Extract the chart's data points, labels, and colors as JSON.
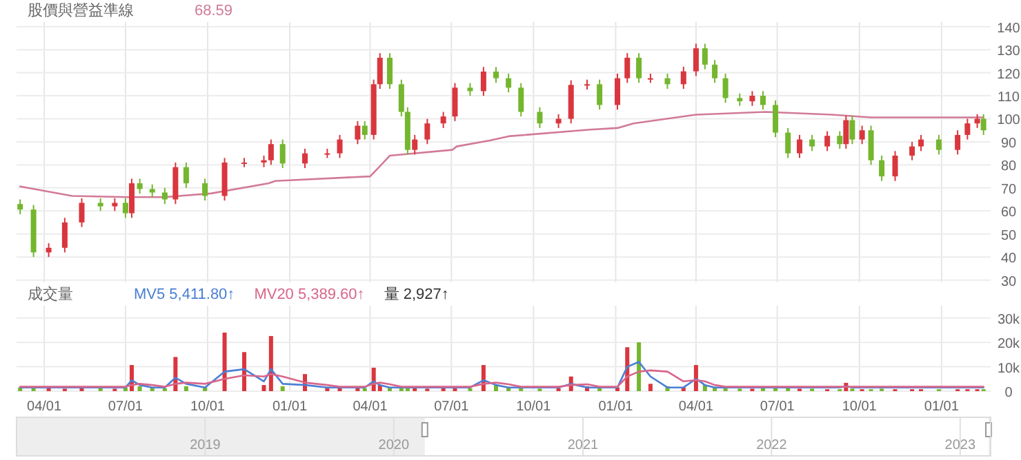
{
  "chart_data": [
    {
      "type": "candlestick",
      "title": "股價與營益準線",
      "annotations": [
        "68.59"
      ],
      "x": [
        "2020-03-05",
        "2020-03-20",
        "2020-04-06",
        "2020-04-24",
        "2020-05-13",
        "2020-06-03",
        "2020-06-19",
        "2020-07-01",
        "2020-07-08",
        "2020-07-17",
        "2020-07-31",
        "2020-08-14",
        "2020-08-26",
        "2020-09-07",
        "2020-09-28",
        "2020-10-20",
        "2020-11-11",
        "2020-12-03",
        "2020-12-11",
        "2020-12-24",
        "2021-01-18",
        "2021-02-12",
        "2021-02-26",
        "2021-03-18",
        "2021-03-26",
        "2021-04-05",
        "2021-04-12",
        "2021-04-23",
        "2021-05-06",
        "2021-05-13",
        "2021-05-21",
        "2021-06-04",
        "2021-06-22",
        "2021-07-05",
        "2021-07-22",
        "2021-08-06",
        "2021-08-20",
        "2021-09-03",
        "2021-09-17",
        "2021-10-08",
        "2021-10-29",
        "2021-11-12",
        "2021-11-30",
        "2021-12-14",
        "2022-01-03",
        "2022-01-14",
        "2022-01-27",
        "2022-02-09",
        "2022-02-28",
        "2022-03-18",
        "2022-04-01",
        "2022-04-11",
        "2022-04-22",
        "2022-05-04",
        "2022-05-20",
        "2022-06-03",
        "2022-06-15",
        "2022-06-29",
        "2022-07-13",
        "2022-07-26",
        "2022-08-09",
        "2022-08-26",
        "2022-09-09",
        "2022-09-16",
        "2022-09-23",
        "2022-10-04",
        "2022-10-14",
        "2022-10-26",
        "2022-11-10",
        "2022-11-29",
        "2022-12-09",
        "2022-12-29",
        "2023-01-19",
        "2023-01-30",
        "2023-02-10",
        "2023-02-17"
      ],
      "ohlc": [
        [
          63,
          65,
          58.6,
          60.6
        ],
        [
          60.6,
          62.6,
          40,
          42
        ],
        [
          42,
          46,
          40,
          44
        ],
        [
          44,
          57,
          42,
          55
        ],
        [
          55,
          65.5,
          53,
          63.5
        ],
        [
          63.5,
          65.5,
          60,
          62
        ],
        [
          62,
          65.5,
          60,
          63.5
        ],
        [
          63.5,
          65.5,
          57,
          59
        ],
        [
          59,
          74,
          57,
          72
        ],
        [
          72,
          74,
          67.5,
          69.5
        ],
        [
          69.5,
          71.5,
          66,
          68
        ],
        [
          68,
          70,
          63,
          65
        ],
        [
          65,
          81,
          63,
          79
        ],
        [
          79,
          81,
          70,
          72
        ],
        [
          72,
          74,
          64.5,
          66.5
        ],
        [
          66.5,
          83,
          64.5,
          81
        ],
        [
          81,
          83,
          79,
          81
        ],
        [
          81,
          84,
          79,
          82
        ],
        [
          82,
          91,
          80,
          89
        ],
        [
          89,
          91,
          78.6,
          80.6
        ],
        [
          80.6,
          87,
          78.6,
          85
        ],
        [
          85,
          87,
          83,
          85
        ],
        [
          85,
          93,
          83,
          91
        ],
        [
          91,
          99,
          89,
          97
        ],
        [
          97,
          99,
          91,
          93
        ],
        [
          93,
          117,
          91,
          115
        ],
        [
          115,
          128.5,
          113,
          126.5
        ],
        [
          126.5,
          128.5,
          113,
          115
        ],
        [
          115,
          117,
          101,
          103
        ],
        [
          103,
          105,
          84.5,
          86.5
        ],
        [
          86.5,
          93,
          84.5,
          91
        ],
        [
          91,
          100,
          89,
          98
        ],
        [
          98,
          103,
          96,
          101
        ],
        [
          101,
          115.5,
          99,
          113.5
        ],
        [
          113.5,
          115.5,
          110,
          112
        ],
        [
          112,
          122.5,
          110,
          120.5
        ],
        [
          120.5,
          122.5,
          115.6,
          117.6
        ],
        [
          117.6,
          119.6,
          111.5,
          113.5
        ],
        [
          113.5,
          115.5,
          101,
          103
        ],
        [
          103,
          105,
          96,
          98
        ],
        [
          98,
          102,
          96,
          100
        ],
        [
          100,
          116.7,
          98,
          114.7
        ],
        [
          114.7,
          117,
          112.7,
          115
        ],
        [
          115,
          117,
          104,
          106
        ],
        [
          106,
          119.6,
          104,
          117.6
        ],
        [
          117.6,
          128.5,
          115.6,
          126.5
        ],
        [
          126.5,
          128.5,
          115.6,
          117.6
        ],
        [
          117.6,
          119.6,
          115.6,
          117.6
        ],
        [
          117.6,
          119.6,
          113,
          115
        ],
        [
          115,
          122.6,
          113,
          120.6
        ],
        [
          120.6,
          132.6,
          118.6,
          130.6
        ],
        [
          130.6,
          132.6,
          121.5,
          123.5
        ],
        [
          123.5,
          125.5,
          115.6,
          117.6
        ],
        [
          117.6,
          119.6,
          107,
          109
        ],
        [
          109,
          111,
          105.6,
          107.6
        ],
        [
          107.6,
          112,
          105.6,
          110
        ],
        [
          110,
          112,
          104,
          106
        ],
        [
          106,
          108,
          92,
          94
        ],
        [
          94,
          96,
          83,
          85
        ],
        [
          85,
          93,
          83,
          91
        ],
        [
          91,
          93,
          86,
          88
        ],
        [
          88,
          94.6,
          86,
          92.6
        ],
        [
          92.6,
          94.6,
          87,
          89
        ],
        [
          89,
          101.4,
          87,
          99.4
        ],
        [
          99.4,
          101.4,
          89,
          91
        ],
        [
          91,
          97,
          89,
          95
        ],
        [
          95,
          97,
          80,
          82
        ],
        [
          82,
          84,
          73,
          75
        ],
        [
          75,
          86,
          73,
          84
        ],
        [
          84,
          90,
          82,
          88
        ],
        [
          88,
          93,
          86,
          91
        ],
        [
          91,
          93,
          84.5,
          86.5
        ],
        [
          86.5,
          95,
          84.5,
          93
        ],
        [
          93,
          100,
          91,
          98
        ],
        [
          98,
          102,
          96,
          100
        ],
        [
          100,
          102,
          93,
          95
        ]
      ],
      "colors": [
        "#74b62e",
        "#74b62e",
        "#d9363e",
        "#d9363e",
        "#d9363e",
        "#74b62e",
        "#d9363e",
        "#74b62e",
        "#d9363e",
        "#74b62e",
        "#74b62e",
        "#74b62e",
        "#d9363e",
        "#74b62e",
        "#74b62e",
        "#d9363e",
        "#d9363e",
        "#d9363e",
        "#d9363e",
        "#74b62e",
        "#d9363e",
        "#d9363e",
        "#d9363e",
        "#d9363e",
        "#74b62e",
        "#d9363e",
        "#d9363e",
        "#74b62e",
        "#74b62e",
        "#74b62e",
        "#d9363e",
        "#d9363e",
        "#d9363e",
        "#d9363e",
        "#74b62e",
        "#d9363e",
        "#74b62e",
        "#74b62e",
        "#74b62e",
        "#74b62e",
        "#d9363e",
        "#d9363e",
        "#d9363e",
        "#74b62e",
        "#d9363e",
        "#d9363e",
        "#74b62e",
        "#d9363e",
        "#74b62e",
        "#d9363e",
        "#d9363e",
        "#74b62e",
        "#74b62e",
        "#74b62e",
        "#74b62e",
        "#d9363e",
        "#74b62e",
        "#74b62e",
        "#74b62e",
        "#d9363e",
        "#74b62e",
        "#d9363e",
        "#74b62e",
        "#d9363e",
        "#74b62e",
        "#d9363e",
        "#74b62e",
        "#74b62e",
        "#d9363e",
        "#d9363e",
        "#d9363e",
        "#74b62e",
        "#d9363e",
        "#d9363e",
        "#d9363e",
        "#74b62e"
      ],
      "series": [
        {
          "type": "line",
          "color": "#d27a96",
          "x": [
            "2020-03-05",
            "2020-05-02",
            "2020-07-03",
            "2020-08-14",
            "2020-10-05",
            "2020-12-08",
            "2020-12-16",
            "2021-04-01",
            "2021-04-12",
            "2021-04-23",
            "2021-07-02",
            "2021-07-07",
            "2021-08-13",
            "2021-09-03",
            "2021-12-03",
            "2022-01-03",
            "2022-01-21",
            "2022-04-01",
            "2022-06-18",
            "2022-08-31",
            "2022-10-14",
            "2023-02-17"
          ],
          "values": [
            70.6,
            66.5,
            66,
            66,
            67.6,
            72,
            73,
            75,
            79.4,
            84,
            86.5,
            88,
            90.6,
            92.4,
            95.3,
            96,
            98,
            101.8,
            103,
            101.8,
            100.6,
            100.6
          ]
        }
      ],
      "xlim": [
        "2020-03-01",
        "2023-02-25"
      ],
      "xticks": [
        {
          "value": "2020-04-01",
          "label": null
        },
        {
          "value": "2020-07-01",
          "label": null
        },
        {
          "value": "2020-10-01",
          "label": null
        },
        {
          "value": "2021-01-01",
          "label": null
        },
        {
          "value": "2021-04-01",
          "label": null
        },
        {
          "value": "2021-07-01",
          "label": null
        },
        {
          "value": "2021-10-01",
          "label": null
        },
        {
          "value": "2022-01-01",
          "label": null
        },
        {
          "value": "2022-04-01",
          "label": null
        },
        {
          "value": "2022-07-01",
          "label": null
        },
        {
          "value": "2022-10-01",
          "label": null
        },
        {
          "value": "2023-01-01",
          "label": null
        }
      ],
      "ylim": [
        29,
        142
      ],
      "yticks": [
        30,
        40,
        50,
        60,
        70,
        80,
        90,
        100,
        110,
        120,
        130,
        140
      ],
      "grid": true,
      "tick_labels": "y"
    },
    {
      "type": "bar",
      "title": "成交量",
      "legend": "top left",
      "annotations": [
        "量 2,927↑"
      ],
      "x": [
        "2020-03-05",
        "2020-03-20",
        "2020-04-06",
        "2020-04-24",
        "2020-05-13",
        "2020-06-03",
        "2020-06-19",
        "2020-07-01",
        "2020-07-08",
        "2020-07-17",
        "2020-07-31",
        "2020-08-14",
        "2020-08-26",
        "2020-09-07",
        "2020-09-28",
        "2020-10-20",
        "2020-11-11",
        "2020-12-03",
        "2020-12-11",
        "2020-12-24",
        "2021-01-18",
        "2021-02-12",
        "2021-02-26",
        "2021-03-18",
        "2021-03-26",
        "2021-04-05",
        "2021-04-12",
        "2021-04-23",
        "2021-05-06",
        "2021-05-13",
        "2021-05-21",
        "2021-06-04",
        "2021-06-22",
        "2021-07-05",
        "2021-07-22",
        "2021-08-06",
        "2021-08-20",
        "2021-09-03",
        "2021-09-17",
        "2021-10-08",
        "2021-10-29",
        "2021-11-12",
        "2021-11-30",
        "2021-12-14",
        "2022-01-03",
        "2022-01-14",
        "2022-01-27",
        "2022-02-09",
        "2022-02-28",
        "2022-03-18",
        "2022-04-01",
        "2022-04-11",
        "2022-04-22",
        "2022-05-04",
        "2022-05-20",
        "2022-06-03",
        "2022-06-15",
        "2022-06-29",
        "2022-07-13",
        "2022-07-26",
        "2022-08-09",
        "2022-08-26",
        "2022-09-09",
        "2022-09-16",
        "2022-09-23",
        "2022-10-04",
        "2022-10-14",
        "2022-10-26",
        "2022-11-10",
        "2022-11-29",
        "2022-12-09",
        "2022-12-29",
        "2023-01-19",
        "2023-01-30",
        "2023-02-10",
        "2023-02-17"
      ],
      "series": [
        {
          "name": "MV5 5,411.80↑",
          "type": "line",
          "color": "#4a7fd4",
          "values": [
            1500,
            1500,
            1500,
            1500,
            1500,
            1500,
            1500,
            1500,
            4500,
            2500,
            1500,
            1500,
            5500,
            3000,
            1500,
            8000,
            9000,
            4000,
            9000,
            3000,
            2500,
            1500,
            1500,
            1500,
            1500,
            4000,
            2500,
            1500,
            1500,
            1500,
            1500,
            1500,
            1500,
            1500,
            1500,
            4500,
            2500,
            1500,
            1500,
            1500,
            1500,
            3000,
            1500,
            1500,
            1500,
            10000,
            12000,
            6000,
            1500,
            1500,
            5000,
            2500,
            1500,
            1500,
            1500,
            1500,
            1500,
            1500,
            1500,
            1500,
            1500,
            1500,
            1500,
            2000,
            1500,
            1500,
            1500,
            1500,
            1500,
            1500,
            1500,
            1500,
            1500,
            1500,
            1500,
            1500
          ]
        },
        {
          "name": "MV20 5,389.60↑",
          "type": "line",
          "color": "#d8668a",
          "values": [
            1800,
            1800,
            1800,
            1800,
            1800,
            1800,
            1800,
            1800,
            2500,
            3000,
            2500,
            1800,
            3000,
            3500,
            3000,
            5000,
            6500,
            6000,
            7000,
            6000,
            3500,
            2500,
            1800,
            1800,
            1800,
            3000,
            3500,
            2800,
            1800,
            1800,
            1800,
            1800,
            1800,
            1800,
            1800,
            3000,
            3500,
            2800,
            1800,
            1800,
            1800,
            2500,
            2800,
            1800,
            1800,
            6000,
            8000,
            8500,
            8000,
            4000,
            4500,
            4000,
            2500,
            1800,
            1800,
            1800,
            1800,
            1800,
            1800,
            1800,
            1800,
            1800,
            1800,
            1800,
            1800,
            1800,
            1800,
            1800,
            1800,
            1800,
            1800,
            1800,
            1800,
            1800,
            1800,
            1800
          ]
        },
        {
          "type": "bar",
          "values": [
            1500,
            2000,
            1200,
            1000,
            1500,
            1200,
            1000,
            1500,
            10700,
            2000,
            1500,
            1200,
            14000,
            2000,
            1500,
            24000,
            16000,
            2500,
            22600,
            2000,
            7000,
            1500,
            1200,
            1500,
            1200,
            9600,
            2500,
            1500,
            1200,
            2000,
            1200,
            1000,
            1200,
            1500,
            1200,
            10700,
            2500,
            1500,
            1200,
            1000,
            1200,
            6000,
            2000,
            1500,
            1500,
            18000,
            20000,
            3000,
            2000,
            1500,
            10700,
            2500,
            1500,
            1200,
            1000,
            1000,
            1200,
            1500,
            1200,
            1000,
            1000,
            800,
            800,
            3400,
            1000,
            800,
            800,
            1000,
            800,
            800,
            800,
            800,
            800,
            800,
            800,
            800
          ],
          "colors": [
            "#74b62e",
            "#74b62e",
            "#d9363e",
            "#d9363e",
            "#d9363e",
            "#74b62e",
            "#d9363e",
            "#74b62e",
            "#d9363e",
            "#74b62e",
            "#74b62e",
            "#74b62e",
            "#d9363e",
            "#74b62e",
            "#74b62e",
            "#d9363e",
            "#d9363e",
            "#d9363e",
            "#d9363e",
            "#74b62e",
            "#d9363e",
            "#d9363e",
            "#d9363e",
            "#d9363e",
            "#74b62e",
            "#d9363e",
            "#d9363e",
            "#74b62e",
            "#74b62e",
            "#74b62e",
            "#d9363e",
            "#d9363e",
            "#d9363e",
            "#d9363e",
            "#74b62e",
            "#d9363e",
            "#74b62e",
            "#74b62e",
            "#74b62e",
            "#74b62e",
            "#d9363e",
            "#d9363e",
            "#d9363e",
            "#74b62e",
            "#d9363e",
            "#d9363e",
            "#74b62e",
            "#d9363e",
            "#74b62e",
            "#d9363e",
            "#d9363e",
            "#74b62e",
            "#74b62e",
            "#74b62e",
            "#74b62e",
            "#d9363e",
            "#74b62e",
            "#74b62e",
            "#74b62e",
            "#d9363e",
            "#74b62e",
            "#d9363e",
            "#74b62e",
            "#d9363e",
            "#74b62e",
            "#d9363e",
            "#74b62e",
            "#74b62e",
            "#d9363e",
            "#d9363e",
            "#d9363e",
            "#74b62e",
            "#d9363e",
            "#d9363e",
            "#d9363e",
            "#74b62e"
          ]
        }
      ],
      "xlim": [
        "2020-03-01",
        "2023-02-25"
      ],
      "xticks": [
        {
          "value": "2020-04-01",
          "label": "04/01"
        },
        {
          "value": "2020-07-01",
          "label": "07/01"
        },
        {
          "value": "2020-10-01",
          "label": "10/01"
        },
        {
          "value": "2021-01-01",
          "label": "01/01"
        },
        {
          "value": "2021-04-01",
          "label": "04/01"
        },
        {
          "value": "2021-07-01",
          "label": "07/01"
        },
        {
          "value": "2021-10-01",
          "label": "10/01"
        },
        {
          "value": "2022-01-01",
          "label": "01/01"
        },
        {
          "value": "2022-04-01",
          "label": "04/01"
        },
        {
          "value": "2022-07-01",
          "label": "07/01"
        },
        {
          "value": "2022-10-01",
          "label": "10/01"
        },
        {
          "value": "2023-01-01",
          "label": "01/01"
        }
      ],
      "ylim": [
        0,
        35000
      ],
      "yticks": [
        0,
        {
          "value": 10000,
          "label": "10k"
        },
        {
          "value": 20000,
          "label": "20k"
        },
        {
          "value": 30000,
          "label": "30k"
        }
      ],
      "grid": true,
      "x2lim": [
        "2018-01-01",
        "2023-03-01"
      ],
      "x2ticks": [
        {
          "value": "2019-01-01",
          "label": "2019"
        },
        {
          "value": "2020-01-01",
          "label": "2020"
        },
        {
          "value": "2021-01-01",
          "label": "2021"
        },
        {
          "value": "2022-01-01",
          "label": "2022"
        },
        {
          "value": "2023-01-01",
          "label": "2023"
        }
      ]
    }
  ]
}
